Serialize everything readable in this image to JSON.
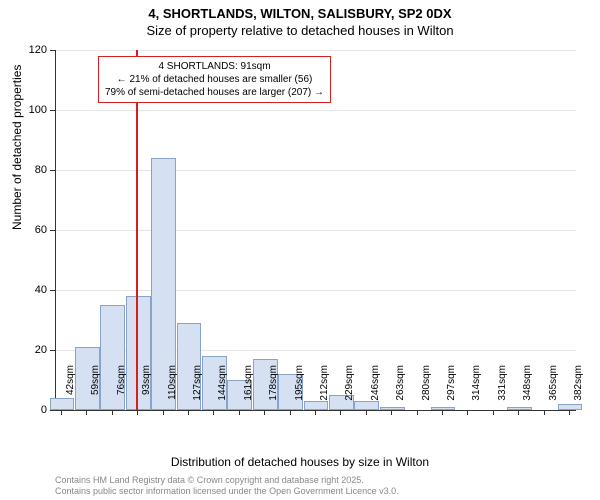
{
  "chart": {
    "type": "histogram",
    "title_line1": "4, SHORTLANDS, WILTON, SALISBURY, SP2 0DX",
    "title_line2": "Size of property relative to detached houses in Wilton",
    "ylabel": "Number of detached properties",
    "xlabel": "Distribution of detached houses by size in Wilton",
    "ylim": [
      0,
      120
    ],
    "ytick_step": 20,
    "yticks": [
      0,
      20,
      40,
      60,
      80,
      100,
      120
    ],
    "xticks": [
      "42sqm",
      "59sqm",
      "76sqm",
      "93sqm",
      "110sqm",
      "127sqm",
      "144sqm",
      "161sqm",
      "178sqm",
      "195sqm",
      "212sqm",
      "229sqm",
      "246sqm",
      "263sqm",
      "280sqm",
      "297sqm",
      "314sqm",
      "331sqm",
      "348sqm",
      "365sqm",
      "382sqm"
    ],
    "bar_values": [
      4,
      21,
      35,
      38,
      84,
      29,
      18,
      10,
      17,
      12,
      3,
      5,
      3,
      1,
      0,
      1,
      0,
      0,
      1,
      0,
      2
    ],
    "bar_fill": "#d5e0f2",
    "bar_border": "#8aa3c8",
    "grid_color": "#e5e5e5",
    "vline_color": "#d62020",
    "vline_x_index": 3.0,
    "note_box": {
      "line1": "4 SHORTLANDS: 91sqm",
      "line2": "← 21% of detached houses are smaller (56)",
      "line3": "79% of semi-detached houses are larger (207) →"
    },
    "background_color": "#ffffff",
    "title_fontsize": 13,
    "label_fontsize": 12,
    "tick_fontsize": 11,
    "note_fontsize": 10,
    "copyright_line1": "Contains HM Land Registry data © Crown copyright and database right 2025.",
    "copyright_line2": "Contains public sector information licensed under the Open Government Licence v3.0.",
    "copyright_color": "#888888"
  }
}
